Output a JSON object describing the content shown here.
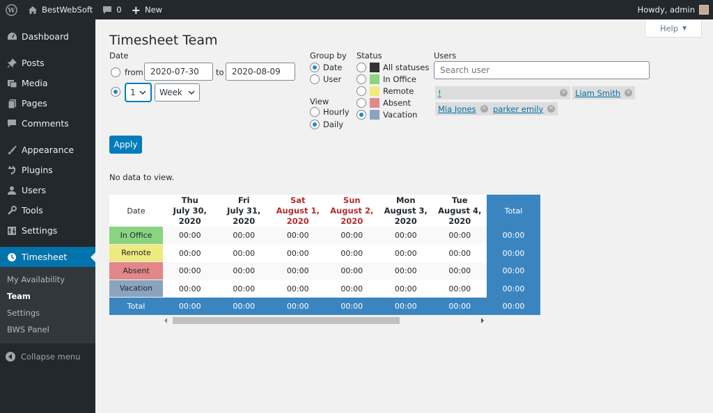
{
  "adminbar": {
    "site_name": "BestWebSoft",
    "comments_count": "0",
    "new_label": "New",
    "howdy": "Howdy, admin"
  },
  "sidebar": {
    "items": [
      {
        "label": "Dashboard",
        "icon": "dashboard-icon"
      },
      {
        "label": "Posts",
        "icon": "pushpin-icon"
      },
      {
        "label": "Media",
        "icon": "media-icon"
      },
      {
        "label": "Pages",
        "icon": "page-icon"
      },
      {
        "label": "Comments",
        "icon": "comment-icon"
      },
      {
        "label": "Appearance",
        "icon": "paintbrush-icon"
      },
      {
        "label": "Plugins",
        "icon": "plugin-icon"
      },
      {
        "label": "Users",
        "icon": "users-icon"
      },
      {
        "label": "Tools",
        "icon": "wrench-icon"
      },
      {
        "label": "Settings",
        "icon": "settings-icon"
      },
      {
        "label": "Timesheet",
        "icon": "clock-icon"
      }
    ],
    "submenu": [
      "My Availability",
      "Team",
      "Settings",
      "BWS Panel"
    ],
    "collapse": "Collapse menu"
  },
  "main": {
    "help": "Help",
    "title": "Timesheet Team",
    "date_label": "Date",
    "from_label": "from",
    "from_value": "2020-07-30",
    "to_label": "to",
    "to_value": "2020-08-09",
    "period_number": "1",
    "period_unit": "Week",
    "group_by_label": "Group by",
    "group_by_options": [
      "Date",
      "User"
    ],
    "view_label": "View",
    "view_options": [
      "Hourly",
      "Daily"
    ],
    "status_label": "Status",
    "status_options": [
      {
        "label": "All statuses",
        "color": "#333333"
      },
      {
        "label": "In Office",
        "color": "#8ad381"
      },
      {
        "label": "Remote",
        "color": "#eeea7e"
      },
      {
        "label": "Absent",
        "color": "#e2878a"
      },
      {
        "label": "Vacation",
        "color": "#8aa4c0"
      }
    ],
    "users_label": "Users",
    "search_placeholder": "Search user",
    "tags": [
      "!",
      "Liam Smith",
      "Mia Jones",
      "parker emily"
    ],
    "apply": "Apply",
    "no_data": "No data to view."
  },
  "table": {
    "corner": "Date",
    "columns": [
      {
        "day": "Thu",
        "date": "July 30, 2020",
        "weekend": false
      },
      {
        "day": "Fri",
        "date": "July 31, 2020",
        "weekend": false
      },
      {
        "day": "Sat",
        "date": "August 1, 2020",
        "weekend": true
      },
      {
        "day": "Sun",
        "date": "August 2, 2020",
        "weekend": true
      },
      {
        "day": "Mon",
        "date": "August 3, 2020",
        "weekend": false
      },
      {
        "day": "Tue",
        "date": "August 4, 2020",
        "weekend": false
      }
    ],
    "total_label": "Total",
    "rows": [
      {
        "label": "In Office",
        "color": "#8ad381",
        "values": [
          "00:00",
          "00:00",
          "00:00",
          "00:00",
          "00:00",
          "00:00"
        ],
        "total": "00:00"
      },
      {
        "label": "Remote",
        "color": "#eeea7e",
        "values": [
          "00:00",
          "00:00",
          "00:00",
          "00:00",
          "00:00",
          "00:00"
        ],
        "total": "00:00"
      },
      {
        "label": "Absent",
        "color": "#e2878a",
        "values": [
          "00:00",
          "00:00",
          "00:00",
          "00:00",
          "00:00",
          "00:00"
        ],
        "total": "00:00"
      },
      {
        "label": "Vacation",
        "color": "#8aa4c0",
        "values": [
          "00:00",
          "00:00",
          "00:00",
          "00:00",
          "00:00",
          "00:00"
        ],
        "total": "00:00"
      }
    ],
    "totals_row": {
      "label": "Total",
      "values": [
        "00:00",
        "00:00",
        "00:00",
        "00:00",
        "00:00",
        "00:00"
      ],
      "total": "00:00"
    }
  }
}
